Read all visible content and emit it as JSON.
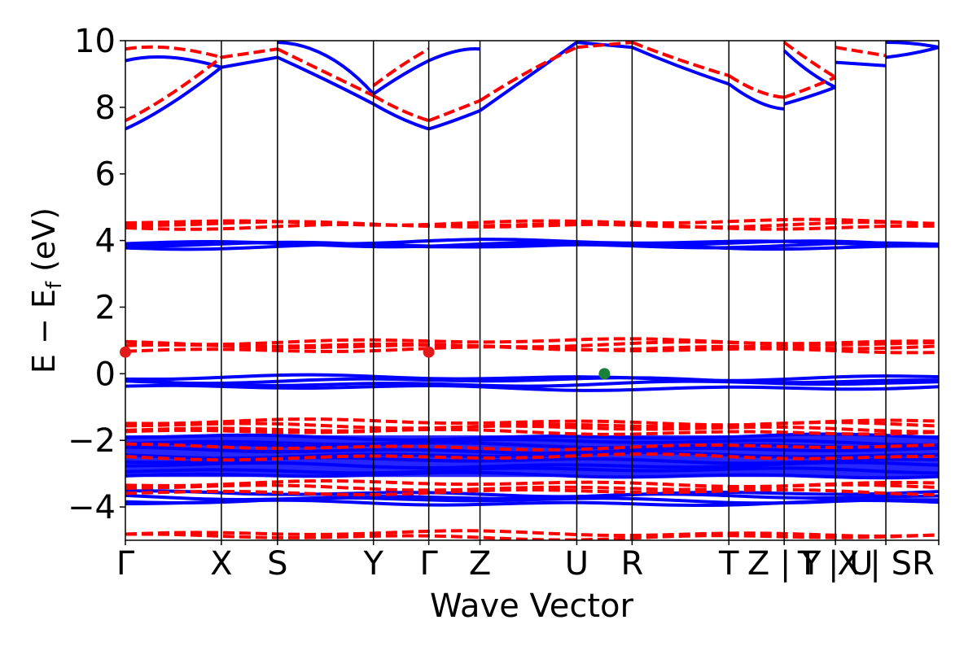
{
  "chart_data": {
    "type": "line",
    "title": "",
    "xlabel": "Wave Vector",
    "ylabel_main": "E − E",
    "ylabel_sub": "f",
    "ylabel_unit": " (eV)",
    "ylim": [
      -5,
      10
    ],
    "yticks": [
      {
        "value": 10,
        "label": "10"
      },
      {
        "value": 8,
        "label": "8"
      },
      {
        "value": 6,
        "label": "6"
      },
      {
        "value": 4,
        "label": "4"
      },
      {
        "value": 2,
        "label": "2"
      },
      {
        "value": 0,
        "label": "0"
      },
      {
        "value": -2,
        "label": "−2"
      },
      {
        "value": -4,
        "label": "−4"
      }
    ],
    "xlim": [
      0,
      1
    ],
    "kpoints": [
      {
        "pos": 0.0,
        "label": "Γ"
      },
      {
        "pos": 0.118,
        "label": "X"
      },
      {
        "pos": 0.187,
        "label": "S"
      },
      {
        "pos": 0.305,
        "label": "Y"
      },
      {
        "pos": 0.373,
        "label": "Γ"
      },
      {
        "pos": 0.436,
        "label": "Z"
      },
      {
        "pos": 0.555,
        "label": "U"
      },
      {
        "pos": 0.623,
        "label": "R"
      },
      {
        "pos": 0.742,
        "label": "T"
      },
      {
        "pos": 0.81,
        "label": "Z | Y"
      },
      {
        "pos": 0.873,
        "label": "T | U"
      },
      {
        "pos": 0.935,
        "label": "X | SR"
      },
      {
        "pos": 1.0,
        "label": ""
      }
    ],
    "grid": false,
    "series": [
      {
        "style": "solid",
        "color": "#0000ff",
        "bands": [
          {
            "segments": [
              {
                "x0": 0.0,
                "x1": 0.8098,
                "y0": [
                  7.35,
                  9.55,
                  9.25,
                  8.05,
                  7.35,
                  7.9,
                  9.6,
                  10.0,
                  8.6,
                  7.95
                ],
                "y1": [
                  9.4,
                  9.6,
                  9.5,
                  8.05,
                  7.35,
                  7.9,
                  9.6,
                  9.8,
                  8.6,
                  7.95
                ]
              }
            ]
          }
        ],
        "curves": [
          {
            "x": [
              0.0,
              0.05,
              0.118
            ],
            "y": [
              7.35,
              7.9,
              9.2
            ]
          },
          {
            "x": [
              0.0,
              0.05,
              0.118
            ],
            "y": [
              9.4,
              9.7,
              9.2
            ]
          },
          {
            "x": [
              0.118,
              0.187
            ],
            "y": [
              9.2,
              9.5
            ]
          },
          {
            "x": [
              0.187,
              0.25,
              0.305
            ],
            "y": [
              9.5,
              8.8,
              8.1
            ]
          },
          {
            "x": [
              0.187,
              0.25,
              0.305
            ],
            "y": [
              9.95,
              9.9,
              8.4
            ]
          },
          {
            "x": [
              0.305,
              0.34,
              0.373
            ],
            "y": [
              8.1,
              7.6,
              7.35
            ]
          },
          {
            "x": [
              0.305,
              0.34,
              0.373
            ],
            "y": [
              8.4,
              9.0,
              9.4
            ]
          },
          {
            "x": [
              0.373,
              0.4,
              0.436
            ],
            "y": [
              7.35,
              7.55,
              7.9
            ]
          },
          {
            "x": [
              0.373,
              0.41,
              0.436
            ],
            "y": [
              9.4,
              9.8,
              9.75
            ]
          },
          {
            "x": [
              0.436,
              0.5,
              0.555
            ],
            "y": [
              7.9,
              9.0,
              9.95
            ]
          },
          {
            "x": [
              0.555,
              0.623
            ],
            "y": [
              9.95,
              9.8
            ]
          },
          {
            "x": [
              0.623,
              0.68,
              0.742
            ],
            "y": [
              9.8,
              9.2,
              8.7
            ]
          },
          {
            "x": [
              0.742,
              0.78,
              0.81
            ],
            "y": [
              8.7,
              8.0,
              7.95
            ]
          },
          {
            "x": [
              0.81,
              0.84,
              0.873
            ],
            "y": [
              8.1,
              8.3,
              8.6
            ]
          },
          {
            "x": [
              0.81,
              0.84,
              0.873
            ],
            "y": [
              9.7,
              9.0,
              8.6
            ]
          },
          {
            "x": [
              0.873,
              0.935
            ],
            "y": [
              9.35,
              9.25
            ]
          },
          {
            "x": [
              0.935,
              0.97,
              1.0
            ],
            "y": [
              9.5,
              9.6,
              9.8
            ]
          },
          {
            "x": [
              0.935,
              0.97,
              1.0
            ],
            "y": [
              9.95,
              9.95,
              9.8
            ]
          }
        ],
        "flat_bands": [
          3.82,
          3.86,
          3.9,
          3.95,
          -0.42,
          -0.3,
          -0.2,
          -0.12,
          -1.9,
          -2.05,
          -2.15,
          -2.3,
          -2.45,
          -2.6,
          -2.75,
          -2.9,
          -3.05,
          -3.6,
          -3.7,
          -3.8,
          -3.88
        ],
        "fill_band": [
          -1.85,
          -3.1
        ]
      },
      {
        "style": "dashed",
        "color": "#ff0000",
        "curves": [
          {
            "x": [
              0.0,
              0.05,
              0.118
            ],
            "y": [
              7.6,
              8.2,
              9.5
            ]
          },
          {
            "x": [
              0.0,
              0.05,
              0.118
            ],
            "y": [
              9.75,
              9.95,
              9.5
            ]
          },
          {
            "x": [
              0.118,
              0.187
            ],
            "y": [
              9.5,
              9.75
            ]
          },
          {
            "x": [
              0.187,
              0.25,
              0.305
            ],
            "y": [
              9.75,
              9.0,
              8.35
            ]
          },
          {
            "x": [
              0.305,
              0.34,
              0.373
            ],
            "y": [
              8.35,
              7.85,
              7.6
            ]
          },
          {
            "x": [
              0.305,
              0.34,
              0.373
            ],
            "y": [
              8.65,
              9.3,
              9.75
            ]
          },
          {
            "x": [
              0.373,
              0.4,
              0.436
            ],
            "y": [
              7.6,
              7.85,
              8.2
            ]
          },
          {
            "x": [
              0.436,
              0.5,
              0.555
            ],
            "y": [
              8.2,
              9.2,
              9.8
            ]
          },
          {
            "x": [
              0.555,
              0.623
            ],
            "y": [
              9.8,
              9.95
            ]
          },
          {
            "x": [
              0.623,
              0.68,
              0.742
            ],
            "y": [
              9.95,
              9.4,
              8.95
            ]
          },
          {
            "x": [
              0.742,
              0.78,
              0.81
            ],
            "y": [
              8.95,
              8.35,
              8.3
            ]
          },
          {
            "x": [
              0.81,
              0.84,
              0.873
            ],
            "y": [
              8.3,
              8.55,
              8.9
            ]
          },
          {
            "x": [
              0.81,
              0.84,
              0.873
            ],
            "y": [
              9.95,
              9.4,
              8.9
            ]
          },
          {
            "x": [
              0.873,
              0.935
            ],
            "y": [
              9.8,
              9.55
            ]
          }
        ],
        "flat_bands": [
          4.42,
          4.48,
          4.55,
          0.72,
          0.8,
          0.88,
          0.97,
          -1.45,
          -1.55,
          -1.65,
          -1.75,
          -2.2,
          -2.5,
          -3.3,
          -3.42,
          -3.55,
          -4.8,
          -4.9
        ]
      }
    ],
    "markers": [
      {
        "x": 0.0,
        "y": 0.65,
        "color": "#e31a1c"
      },
      {
        "x": 0.373,
        "y": 0.65,
        "color": "#e31a1c"
      },
      {
        "x": 0.589,
        "y": 0.0,
        "color": "#1a7f37"
      }
    ]
  }
}
